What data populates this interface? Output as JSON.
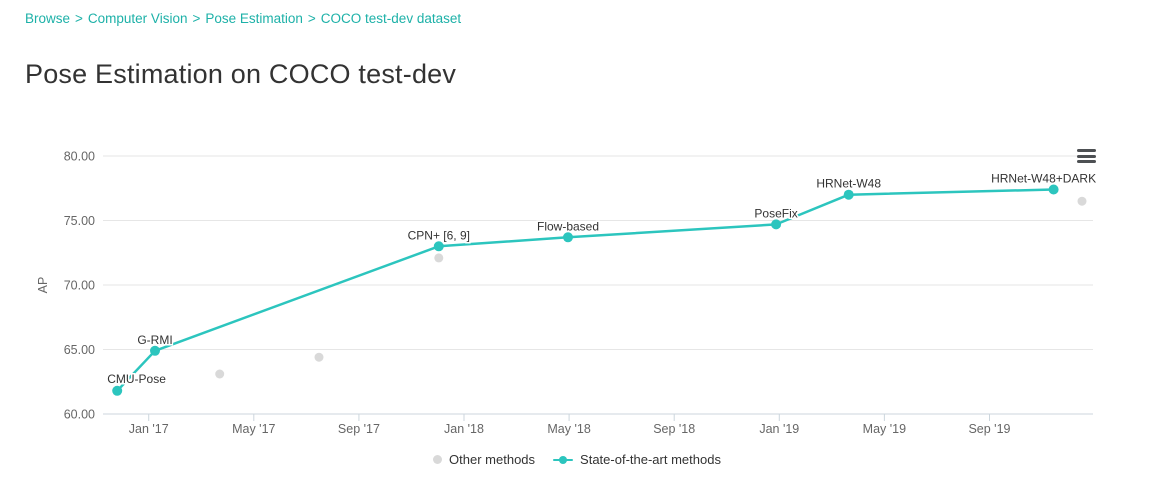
{
  "breadcrumb": {
    "separator": ">",
    "items": [
      {
        "label": "Browse"
      },
      {
        "label": "Computer Vision"
      },
      {
        "label": "Pose Estimation"
      },
      {
        "label": "COCO test-dev dataset"
      }
    ]
  },
  "page_title": "Pose Estimation on COCO test-dev",
  "colors": {
    "accent_teal": "#2cc5be",
    "breadcrumb_link": "#1db1a8",
    "other_methods_gray": "#d9d9d9",
    "grid_line": "#e6e6e6",
    "axis_line": "#ccd6dd",
    "tick_label": "#666666",
    "data_label": "#333333",
    "menu_icon": "#4d5053"
  },
  "icons": {
    "chart_menu": "hamburger-icon",
    "other_methods_marker": "dot-marker",
    "sota_marker": "line-dot-marker"
  },
  "chart_data": {
    "type": "line",
    "title": "Pose Estimation on COCO test-dev",
    "xlabel": "",
    "ylabel": "AP",
    "ylim": [
      60,
      80
    ],
    "x_domain_decimal_years": [
      2016.855,
      2019.995
    ],
    "grid": true,
    "legend_position": "bottom-center",
    "y_ticks": [
      {
        "value": 80,
        "label": "80.00"
      },
      {
        "value": 75,
        "label": "75.00"
      },
      {
        "value": 70,
        "label": "70.00"
      },
      {
        "value": 65,
        "label": "65.00"
      },
      {
        "value": 60,
        "label": "60.00"
      }
    ],
    "x_ticks": [
      {
        "year": 2017.0,
        "label": "Jan '17"
      },
      {
        "year": 2017.3333,
        "label": "May '17"
      },
      {
        "year": 2017.6667,
        "label": "Sep '17"
      },
      {
        "year": 2018.0,
        "label": "Jan '18"
      },
      {
        "year": 2018.3333,
        "label": "May '18"
      },
      {
        "year": 2018.6667,
        "label": "Sep '18"
      },
      {
        "year": 2019.0,
        "label": "Jan '19"
      },
      {
        "year": 2019.3333,
        "label": "May '19"
      },
      {
        "year": 2019.6667,
        "label": "Sep '19"
      }
    ],
    "series": [
      {
        "name": "Other methods",
        "type": "scatter",
        "color": "#d9d9d9",
        "marker_radius": 4.5,
        "points": [
          {
            "year": 2017.225,
            "ap": 63.1
          },
          {
            "year": 2017.54,
            "ap": 64.4
          },
          {
            "year": 2017.92,
            "ap": 72.1
          },
          {
            "year": 2019.96,
            "ap": 76.5
          }
        ]
      },
      {
        "name": "State-of-the-art methods",
        "type": "line",
        "color": "#2cc5be",
        "marker_radius": 5,
        "points": [
          {
            "year": 2016.9,
            "ap": 61.8,
            "label": "CMU-Pose",
            "label_anchor": "start",
            "label_dx": -10,
            "label_dy": -8
          },
          {
            "year": 2017.02,
            "ap": 64.9,
            "label": "G-RMI"
          },
          {
            "year": 2017.92,
            "ap": 73.0,
            "label": "CPN+ [6, 9]"
          },
          {
            "year": 2018.33,
            "ap": 73.7,
            "label": "Flow-based"
          },
          {
            "year": 2018.99,
            "ap": 74.7,
            "label": "PoseFix"
          },
          {
            "year": 2019.22,
            "ap": 77.0,
            "label": "HRNet-W48"
          },
          {
            "year": 2019.87,
            "ap": 77.4,
            "label": "HRNet-W48+DARK",
            "label_dx": -10
          }
        ]
      }
    ],
    "legend": [
      {
        "label": "Other methods",
        "marker": "dot",
        "color": "#d9d9d9"
      },
      {
        "label": "State-of-the-art methods",
        "marker": "line-dot",
        "color": "#2cc5be"
      }
    ]
  }
}
